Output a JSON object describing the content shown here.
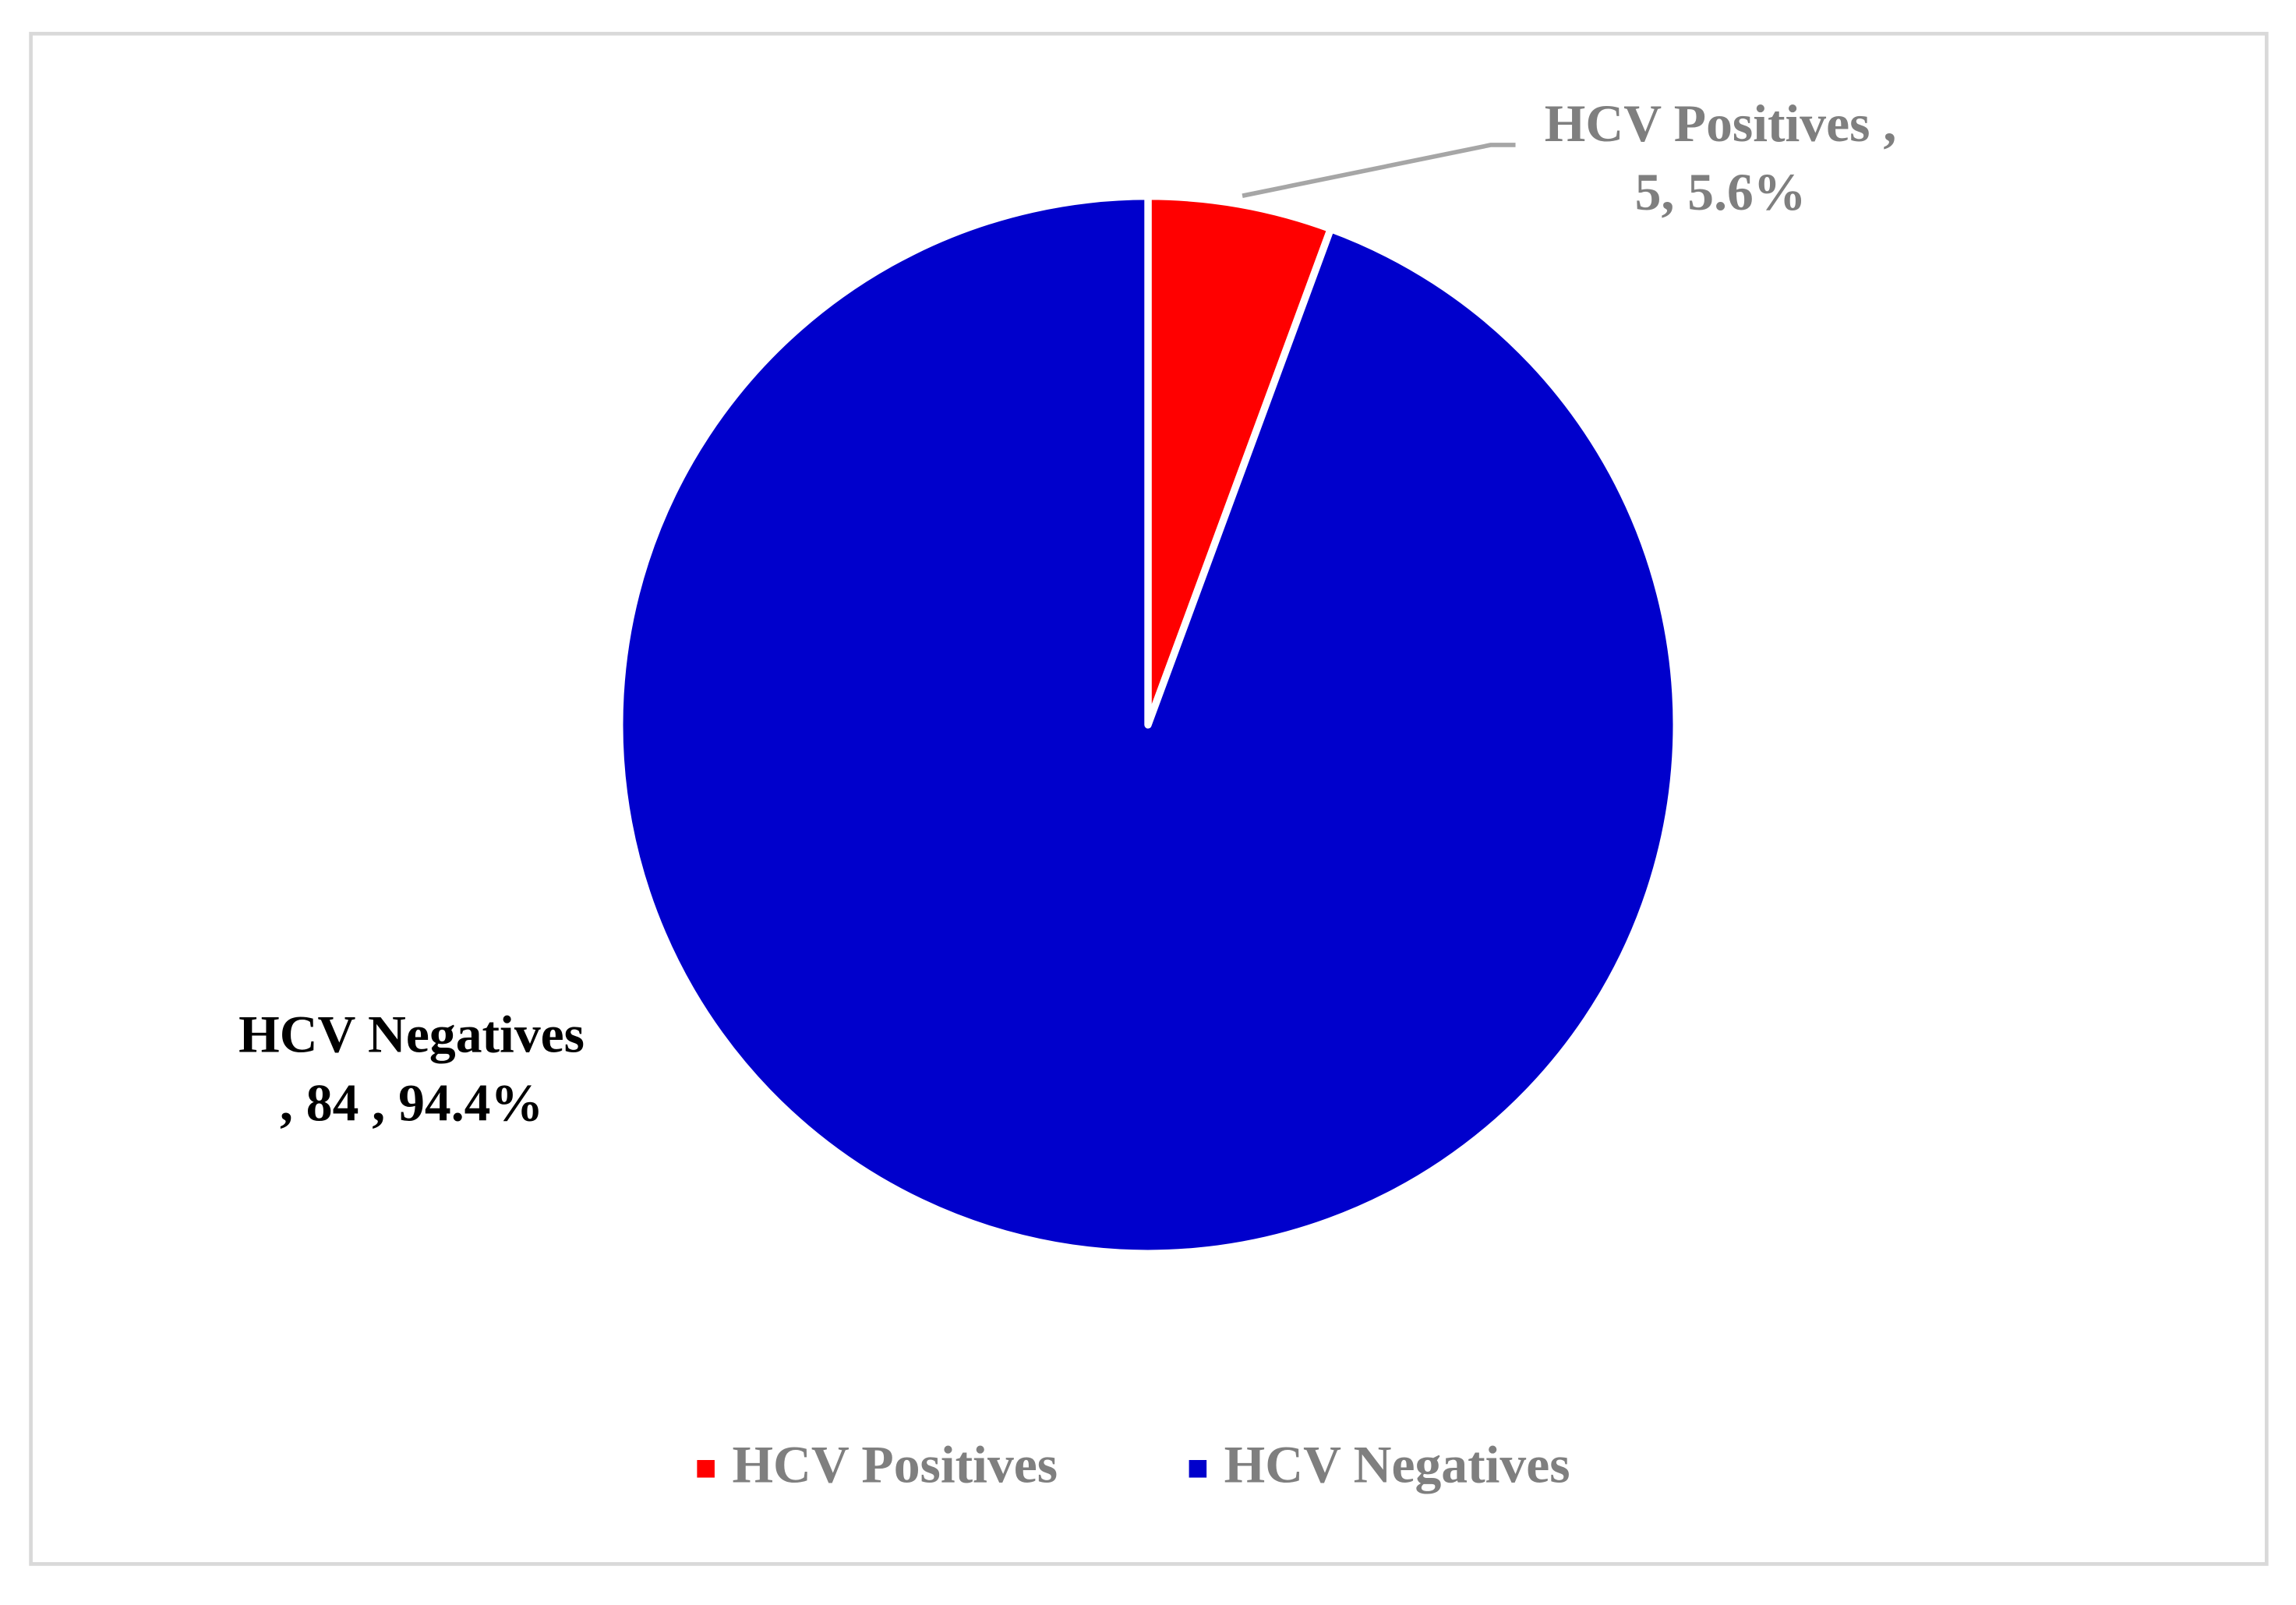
{
  "chart_data": {
    "type": "pie",
    "categories": [
      "HCV Positives",
      "HCV Negatives"
    ],
    "series": [
      {
        "colors": [
          "#ff0000",
          "#0000cc"
        ],
        "values": [
          5,
          84
        ],
        "value_labels": [
          [
            "HCV Positives ,",
            "5, 5.6%"
          ],
          [
            "HCV Negatives",
            ",  84 , 94.4%"
          ]
        ]
      }
    ],
    "legend": "bottom"
  }
}
